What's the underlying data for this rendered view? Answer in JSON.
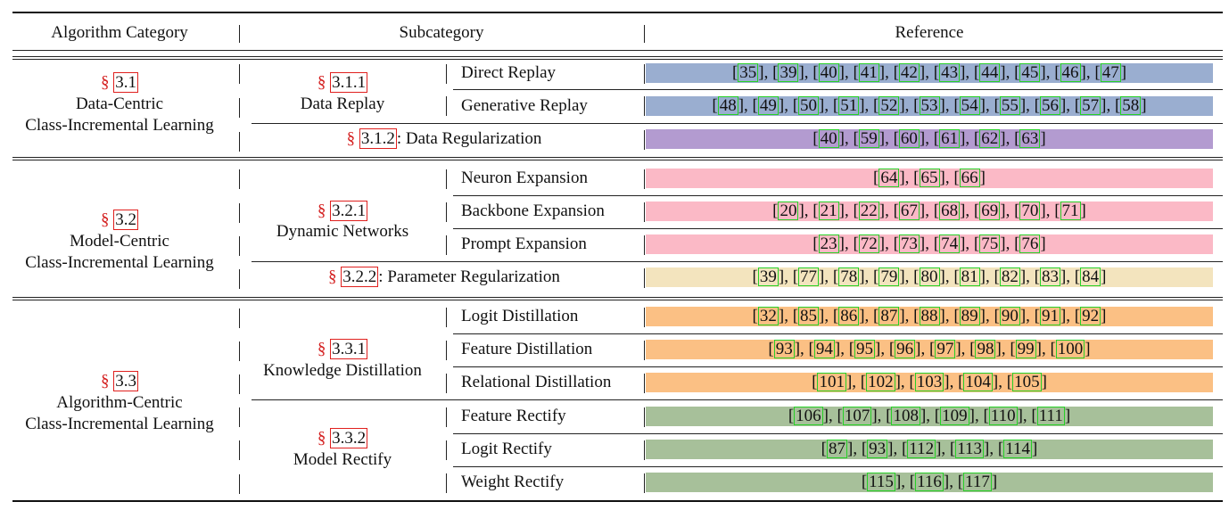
{
  "header": {
    "algorithm_category": "Algorithm Category",
    "subcategory": "Subcategory",
    "reference": "Reference"
  },
  "section_symbol": "§",
  "colors": {
    "replay_blue": "#9aaed0",
    "regularization_purple": "#b39bd0",
    "expansion_pink": "#fbb9c6",
    "param_reg_beige": "#f3e4be",
    "distillation_orange": "#fbc084",
    "rectify_green": "#a7c09a",
    "section_red": "#d42020",
    "citation_green": "#27d027"
  },
  "groups": [
    {
      "section": "3.1",
      "name_line1": "Data-Centric",
      "name_line2": "Class-Incremental Learning",
      "subsections": [
        {
          "section": "3.1.1",
          "name": "Data Replay",
          "rows": [
            {
              "label": "Direct Replay",
              "refs": [
                "35",
                "39",
                "40",
                "41",
                "42",
                "43",
                "44",
                "45",
                "46",
                "47"
              ]
            },
            {
              "label": "Generative Replay",
              "refs": [
                "48",
                "49",
                "50",
                "51",
                "52",
                "53",
                "54",
                "55",
                "56",
                "57",
                "58"
              ]
            }
          ]
        },
        {
          "section": "3.1.2",
          "name": ": Data Regularization",
          "refs": [
            "40",
            "59",
            "60",
            "61",
            "62",
            "63"
          ]
        }
      ]
    },
    {
      "section": "3.2",
      "name_line1": "Model-Centric",
      "name_line2": "Class-Incremental Learning",
      "subsections": [
        {
          "section": "3.2.1",
          "name": "Dynamic Networks",
          "rows": [
            {
              "label": "Neuron Expansion",
              "refs": [
                "64",
                "65",
                "66"
              ]
            },
            {
              "label": "Backbone Expansion",
              "refs": [
                "20",
                "21",
                "22",
                "67",
                "68",
                "69",
                "70",
                "71"
              ]
            },
            {
              "label": "Prompt Expansion",
              "refs": [
                "23",
                "72",
                "73",
                "74",
                "75",
                "76"
              ]
            }
          ]
        },
        {
          "section": "3.2.2",
          "name": ": Parameter Regularization",
          "refs": [
            "39",
            "77",
            "78",
            "79",
            "80",
            "81",
            "82",
            "83",
            "84"
          ]
        }
      ]
    },
    {
      "section": "3.3",
      "name_line1": "Algorithm-Centric",
      "name_line2": "Class-Incremental Learning",
      "subsections": [
        {
          "section": "3.3.1",
          "name": "Knowledge Distillation",
          "rows": [
            {
              "label": "Logit Distillation",
              "refs": [
                "32",
                "85",
                "86",
                "87",
                "88",
                "89",
                "90",
                "91",
                "92"
              ]
            },
            {
              "label": "Feature Distillation",
              "refs": [
                "93",
                "94",
                "95",
                "96",
                "97",
                "98",
                "99",
                "100"
              ]
            },
            {
              "label": "Relational Distillation",
              "refs": [
                "101",
                "102",
                "103",
                "104",
                "105"
              ]
            }
          ]
        },
        {
          "section": "3.3.2",
          "name": "Model Rectify",
          "rows": [
            {
              "label": "Feature Rectify",
              "refs": [
                "106",
                "107",
                "108",
                "109",
                "110",
                "111"
              ]
            },
            {
              "label": "Logit Rectify",
              "refs": [
                "87",
                "93",
                "112",
                "113",
                "114"
              ]
            },
            {
              "label": "Weight Rectify",
              "refs": [
                "115",
                "116",
                "117"
              ]
            }
          ]
        }
      ]
    }
  ]
}
